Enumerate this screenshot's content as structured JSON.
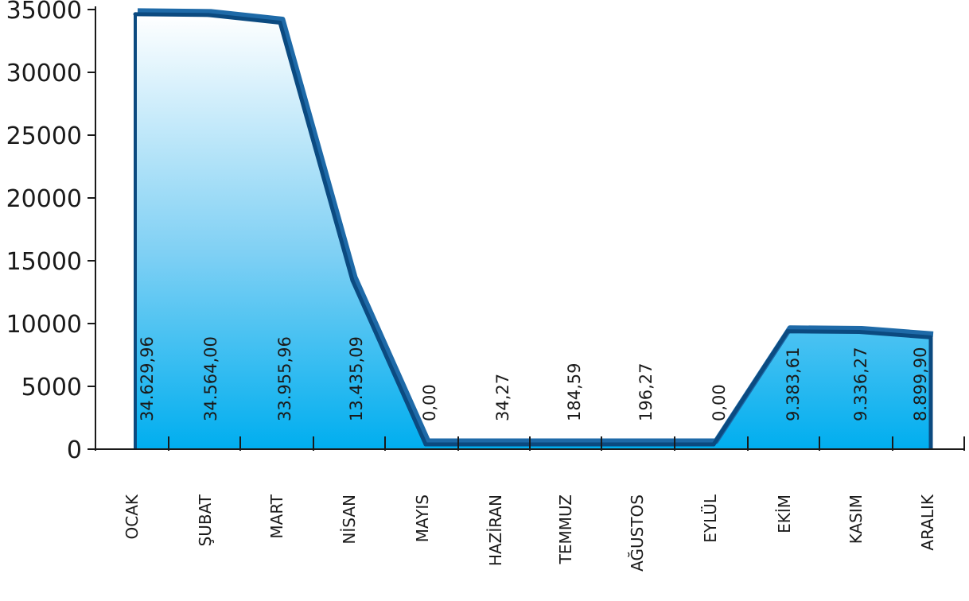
{
  "chart_data": {
    "type": "area",
    "categories": [
      "OCAK",
      "ŞUBAT",
      "MART",
      "NİSAN",
      "MAYIS",
      "HAZİRAN",
      "TEMMUZ",
      "AĞUSTOS",
      "EYLÜL",
      "EKİM",
      "KASIM",
      "ARALIK"
    ],
    "values": [
      34629.96,
      34564.0,
      33955.96,
      13435.09,
      0.0,
      34.27,
      184.59,
      196.27,
      0.0,
      9383.61,
      9336.27,
      8899.9
    ],
    "data_labels": [
      "34.629,96",
      "34.564,00",
      "33.955,96",
      "13.435,09",
      "0,00",
      "34,27",
      "184,59",
      "196,27",
      "0,00",
      "9.383,61",
      "9.336,27",
      "8.899,90"
    ],
    "yticks": [
      "0",
      "5000",
      "10000",
      "15000",
      "20000",
      "25000",
      "30000",
      "35000"
    ],
    "ylim": [
      0,
      35000
    ],
    "grid": false,
    "colors": {
      "fill_top": "#ffffff",
      "fill_mid": "#7fd0f4",
      "fill_bottom": "#00aeef",
      "line": "#0b4a80",
      "line_shadow": "#1e6aa8",
      "axis": "#1a1a1a"
    }
  }
}
